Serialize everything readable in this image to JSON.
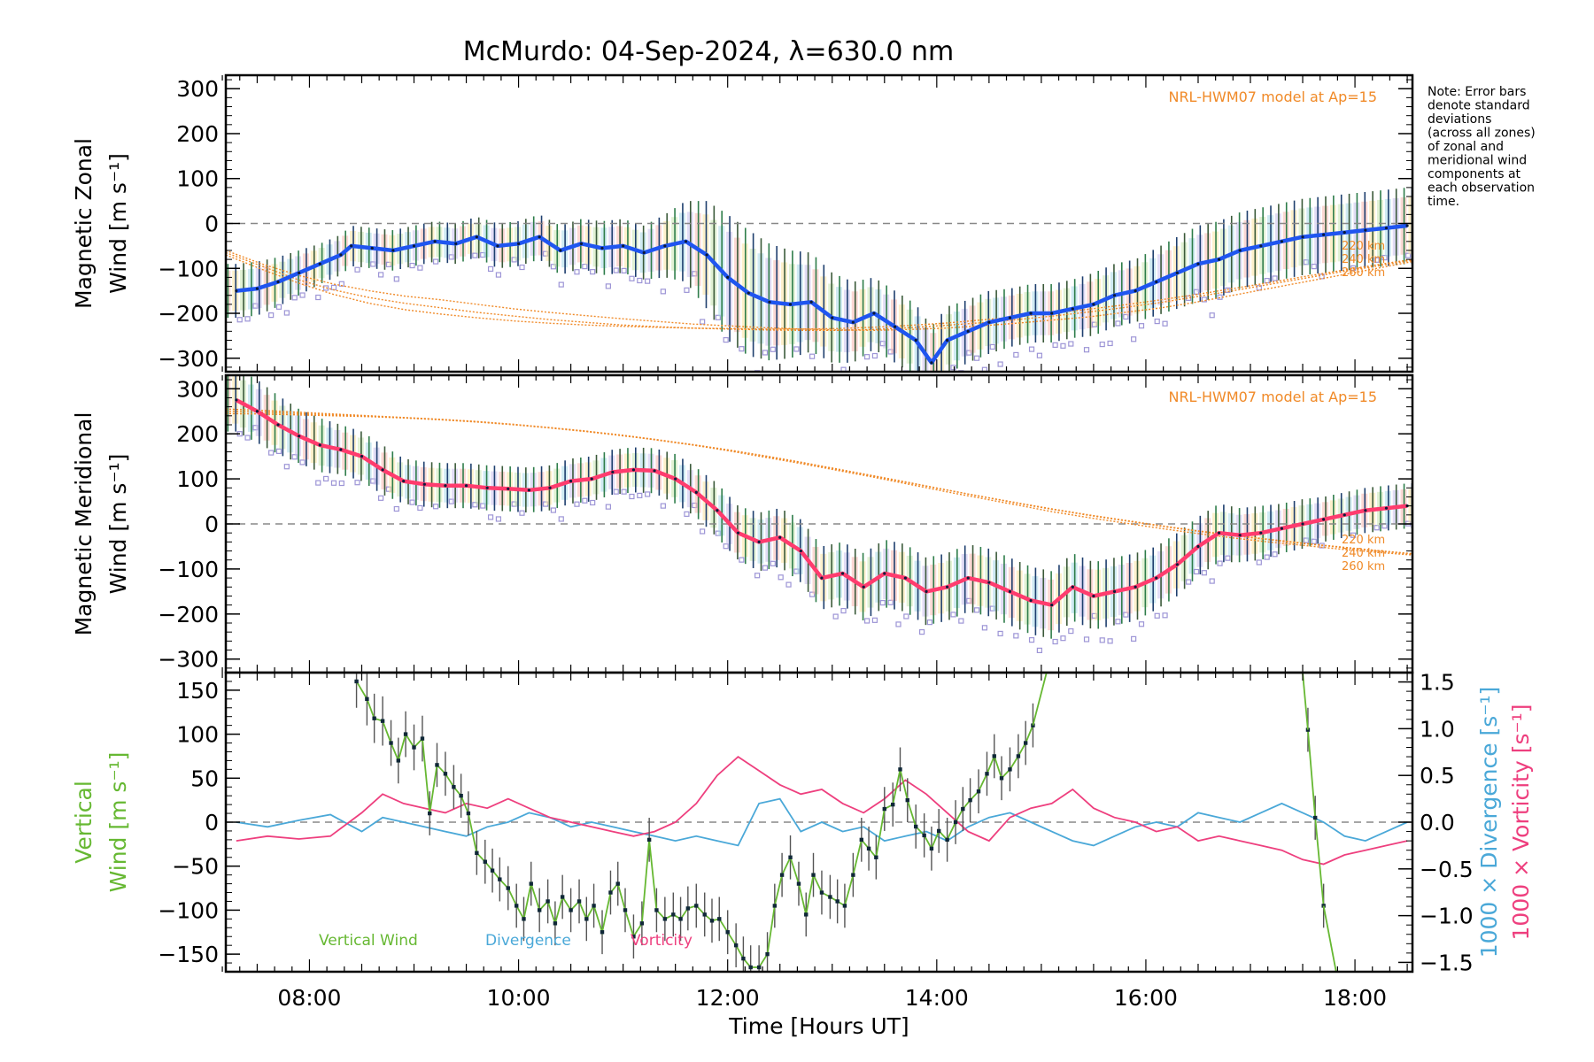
{
  "title": "McMurdo: 04-Sep-2024, λ=630.0 nm",
  "note": "Note: Error bars denote standard deviations (across all zones) of zonal and meridional wind components at each observation time.",
  "note_lines": [
    "Note: Error bars",
    "denote standard",
    "deviations",
    "(across all zones)",
    "of zonal and",
    "meridional wind",
    "components at",
    "each observation",
    "time."
  ],
  "colors": {
    "zonal": "#1f55f0",
    "meridional": "#ff3c6e",
    "vertical": "#66b832",
    "divergence": "#4aa8d8",
    "vorticity": "#ee3f7e",
    "model": "#f08a28",
    "error_bar": "#2a4a5c",
    "zone_points": "#9d95d6"
  },
  "chart_data": [
    {
      "type": "line",
      "id": "zonal",
      "ylabel_line1": "Magnetic Zonal",
      "ylabel_line2": "Wind [m s⁻¹]",
      "ylim": [
        -330,
        330
      ],
      "yticks": [
        300,
        200,
        100,
        0,
        -100,
        -200,
        -300
      ],
      "ytick_labels": [
        "300",
        "200",
        "100",
        "0",
        "−100",
        "−200",
        "−300"
      ],
      "model_label": "NRL-HWM07 model at Ap=15",
      "model_altitudes": [
        "220 km",
        "240 km",
        "260 km"
      ],
      "x": [
        7.3,
        7.5,
        7.7,
        7.9,
        8.1,
        8.3,
        8.4,
        8.6,
        8.8,
        9.0,
        9.2,
        9.4,
        9.6,
        9.8,
        10.0,
        10.2,
        10.4,
        10.6,
        10.8,
        11.0,
        11.2,
        11.4,
        11.6,
        11.8,
        12.0,
        12.2,
        12.4,
        12.6,
        12.8,
        13.0,
        13.2,
        13.4,
        13.6,
        13.8,
        13.95,
        14.1,
        14.3,
        14.5,
        14.7,
        14.9,
        15.1,
        15.3,
        15.5,
        15.7,
        15.9,
        16.1,
        16.3,
        16.5,
        16.7,
        16.9,
        17.1,
        17.3,
        17.5,
        17.7,
        17.9,
        18.1,
        18.3,
        18.5
      ],
      "values": [
        -150,
        -145,
        -130,
        -110,
        -90,
        -70,
        -50,
        -55,
        -60,
        -50,
        -40,
        -45,
        -30,
        -50,
        -45,
        -30,
        -60,
        -45,
        -55,
        -50,
        -65,
        -50,
        -40,
        -70,
        -120,
        -155,
        -175,
        -180,
        -175,
        -210,
        -220,
        -200,
        -230,
        -260,
        -310,
        -260,
        -240,
        -220,
        -210,
        -200,
        -200,
        -190,
        -180,
        -160,
        -150,
        -130,
        -110,
        -90,
        -80,
        -60,
        -50,
        -40,
        -30,
        -25,
        -20,
        -15,
        -10,
        -5
      ],
      "error": [
        60,
        60,
        55,
        50,
        45,
        45,
        45,
        45,
        45,
        45,
        45,
        45,
        45,
        50,
        50,
        50,
        55,
        55,
        60,
        60,
        60,
        70,
        90,
        120,
        140,
        140,
        130,
        120,
        110,
        100,
        90,
        80,
        80,
        80,
        80,
        75,
        70,
        70,
        65,
        65,
        65,
        65,
        70,
        70,
        70,
        75,
        80,
        85,
        85,
        85,
        85,
        85,
        85,
        85,
        85,
        85,
        85,
        85
      ],
      "model_220": [
        -60,
        -90,
        -115,
        -135,
        -150,
        -162,
        -170,
        -180,
        -190,
        -198,
        -205,
        -212,
        -218,
        -224,
        -228,
        -232,
        -235,
        -237,
        -238,
        -236,
        -233,
        -228,
        -222,
        -215,
        -208,
        -198,
        -188,
        -175,
        -160,
        -145,
        -130,
        -115,
        -100,
        -85
      ],
      "model_240": [
        -65,
        -95,
        -125,
        -148,
        -165,
        -178,
        -188,
        -198,
        -206,
        -214,
        -220,
        -226,
        -230,
        -233,
        -235,
        -237,
        -238,
        -238,
        -236,
        -232,
        -227,
        -221,
        -214,
        -206,
        -197,
        -187,
        -176,
        -163,
        -150,
        -136,
        -122,
        -108,
        -95,
        -82
      ],
      "model_260": [
        -70,
        -102,
        -132,
        -158,
        -178,
        -192,
        -202,
        -210,
        -217,
        -222,
        -226,
        -229,
        -231,
        -233,
        -234,
        -235,
        -235,
        -234,
        -231,
        -227,
        -222,
        -215,
        -208,
        -200,
        -191,
        -181,
        -170,
        -158,
        -145,
        -132,
        -118,
        -105,
        -92,
        -80
      ]
    },
    {
      "type": "line",
      "id": "meridional",
      "ylabel_line1": "Magnetic Meridional",
      "ylabel_line2": "Wind [m s⁻¹]",
      "ylim": [
        -330,
        330
      ],
      "yticks": [
        300,
        200,
        100,
        0,
        -100,
        -200,
        -300
      ],
      "ytick_labels": [
        "300",
        "200",
        "100",
        "0",
        "−100",
        "−200",
        "−300"
      ],
      "model_label": "NRL-HWM07 model at Ap=15",
      "model_altitudes": [
        "220 km",
        "240 km",
        "260 km"
      ],
      "x": [
        7.3,
        7.5,
        7.7,
        7.9,
        8.1,
        8.3,
        8.5,
        8.7,
        8.9,
        9.1,
        9.3,
        9.5,
        9.7,
        9.9,
        10.1,
        10.3,
        10.5,
        10.7,
        10.9,
        11.1,
        11.3,
        11.5,
        11.7,
        11.9,
        12.1,
        12.3,
        12.5,
        12.7,
        12.9,
        13.1,
        13.3,
        13.5,
        13.7,
        13.9,
        14.1,
        14.3,
        14.5,
        14.7,
        14.9,
        15.1,
        15.3,
        15.5,
        15.7,
        15.9,
        16.1,
        16.3,
        16.5,
        16.7,
        16.9,
        17.1,
        17.3,
        17.5,
        17.7,
        17.9,
        18.1,
        18.3,
        18.5
      ],
      "values": [
        275,
        250,
        220,
        195,
        175,
        165,
        150,
        120,
        95,
        88,
        85,
        85,
        80,
        78,
        75,
        80,
        95,
        100,
        115,
        120,
        118,
        100,
        70,
        30,
        -20,
        -40,
        -30,
        -60,
        -120,
        -110,
        -140,
        -110,
        -120,
        -150,
        -140,
        -120,
        -130,
        -150,
        -170,
        -180,
        -140,
        -160,
        -150,
        -140,
        -120,
        -90,
        -50,
        -20,
        -25,
        -20,
        -10,
        0,
        10,
        20,
        30,
        35,
        40
      ],
      "error": [
        70,
        70,
        65,
        60,
        60,
        55,
        55,
        55,
        50,
        50,
        50,
        50,
        50,
        50,
        50,
        50,
        50,
        50,
        50,
        50,
        50,
        55,
        55,
        60,
        60,
        65,
        65,
        70,
        70,
        70,
        75,
        75,
        75,
        75,
        75,
        75,
        75,
        75,
        75,
        75,
        75,
        75,
        75,
        75,
        70,
        70,
        65,
        65,
        60,
        60,
        55,
        55,
        50,
        50,
        50,
        50,
        50
      ],
      "model_220": [
        255,
        252,
        248,
        244,
        240,
        236,
        232,
        227,
        221,
        214,
        206,
        197,
        186,
        175,
        162,
        148,
        134,
        119,
        104,
        88,
        72,
        57,
        42,
        27,
        14,
        2,
        -10,
        -21,
        -31,
        -40,
        -48,
        -56,
        -63,
        -69
      ],
      "model_240": [
        250,
        248,
        245,
        242,
        239,
        236,
        232,
        227,
        221,
        214,
        206,
        197,
        187,
        176,
        164,
        151,
        137,
        122,
        107,
        92,
        76,
        61,
        46,
        32,
        19,
        7,
        -5,
        -16,
        -26,
        -35,
        -44,
        -52,
        -60,
        -67
      ],
      "model_260": [
        245,
        244,
        242,
        240,
        238,
        235,
        231,
        226,
        220,
        213,
        205,
        196,
        186,
        175,
        163,
        150,
        136,
        121,
        106,
        91,
        76,
        61,
        47,
        33,
        20,
        8,
        -4,
        -15,
        -25,
        -34,
        -43,
        -51,
        -59,
        -66
      ]
    },
    {
      "type": "line",
      "id": "vertical",
      "ylabel_line1": "Vertical",
      "ylabel_line2": "Wind [m s⁻¹]",
      "ylim": [
        -170,
        170
      ],
      "yticks": [
        150,
        100,
        50,
        0,
        -50,
        -100,
        -150
      ],
      "ytick_labels": [
        "150",
        "100",
        "50",
        "0",
        "−50",
        "−100",
        "−150"
      ],
      "right_ylim": [
        -1.6,
        1.6
      ],
      "right_yticks": [
        1.5,
        1.0,
        0.5,
        0.0,
        -0.5,
        -1.0,
        -1.5
      ],
      "right_ytick_labels": [
        "1.5",
        "1.0",
        "0.5",
        "0.0",
        "−0.5",
        "−1.0",
        "−1.5"
      ],
      "right_label_divergence": "1000 × Divergence [s⁻¹]",
      "right_label_vorticity": "1000 × Vorticity [s⁻¹]",
      "legend": [
        "Vertical Wind",
        "Divergence",
        "Vorticity"
      ],
      "vertical_segments": [
        {
          "x": [
            8.45,
            8.55,
            8.62,
            8.7,
            8.78,
            8.85,
            8.92,
            9.0,
            9.08,
            9.15,
            9.22,
            9.3,
            9.38,
            9.45,
            9.52,
            9.6,
            9.68,
            9.75,
            9.82,
            9.9,
            9.98,
            10.05,
            10.12,
            10.2,
            10.28,
            10.35,
            10.42,
            10.5,
            10.58,
            10.65,
            10.72,
            10.8,
            10.88,
            10.95,
            11.02,
            11.1,
            11.18,
            11.25,
            11.32,
            11.4,
            11.48,
            11.55,
            11.62,
            11.7,
            11.78,
            11.85,
            11.92,
            12.0,
            12.08,
            12.15,
            12.22,
            12.3,
            12.38,
            12.45,
            12.52,
            12.6,
            12.68,
            12.75,
            12.82,
            12.9,
            12.98,
            13.05,
            13.12,
            13.2,
            13.28,
            13.35,
            13.42,
            13.5,
            13.58,
            13.65,
            13.72,
            13.8,
            13.88,
            13.95,
            14.02,
            14.1,
            14.18,
            14.25,
            14.32,
            14.4,
            14.48,
            14.55,
            14.62,
            14.7,
            14.78,
            14.85,
            14.92
          ],
          "values": [
            160,
            140,
            118,
            115,
            90,
            70,
            100,
            85,
            95,
            10,
            65,
            55,
            40,
            30,
            10,
            -35,
            -45,
            -55,
            -65,
            -75,
            -95,
            -110,
            -70,
            -100,
            -90,
            -115,
            -85,
            -100,
            -90,
            -110,
            -95,
            -125,
            -80,
            -70,
            -100,
            -130,
            -115,
            -20,
            -100,
            -110,
            -105,
            -110,
            -98,
            -95,
            -105,
            -112,
            -110,
            -125,
            -140,
            -155,
            -165,
            -165,
            -150,
            -95,
            -60,
            -40,
            -70,
            -105,
            -60,
            -80,
            -85,
            -90,
            -95,
            -60,
            -20,
            -30,
            -40,
            15,
            20,
            60,
            25,
            -5,
            -15,
            -30,
            -10,
            -20,
            0,
            15,
            25,
            35,
            55,
            75,
            50,
            60,
            75,
            90,
            110
          ],
          "error": [
            30,
            30,
            28,
            28,
            26,
            26,
            26,
            26,
            26,
            25,
            25,
            25,
            25,
            25,
            25,
            25,
            25,
            25,
            25,
            25,
            25,
            25,
            25,
            25,
            25,
            25,
            25,
            25,
            25,
            25,
            25,
            25,
            25,
            25,
            25,
            25,
            25,
            25,
            25,
            25,
            25,
            25,
            25,
            25,
            25,
            25,
            25,
            25,
            25,
            25,
            25,
            25,
            25,
            25,
            25,
            25,
            25,
            25,
            25,
            25,
            25,
            25,
            25,
            25,
            25,
            25,
            25,
            25,
            25,
            25,
            25,
            25,
            25,
            25,
            25,
            25,
            25,
            25,
            25,
            25,
            25,
            25,
            25,
            25,
            25,
            25,
            25
          ]
        },
        {
          "x": [
            17.55,
            17.62,
            17.7
          ],
          "values": [
            105,
            5,
            -95
          ],
          "error": [
            25,
            25,
            25
          ]
        }
      ],
      "vertical_clip_lines": [
        {
          "x": [
            14.92,
            15.05
          ],
          "values": [
            110,
            170
          ]
        },
        {
          "x": [
            17.5,
            17.55
          ],
          "values": [
            170,
            105
          ]
        },
        {
          "x": [
            17.7,
            17.82
          ],
          "values": [
            -95,
            -170
          ]
        }
      ],
      "divergence": {
        "x": [
          7.3,
          7.6,
          7.9,
          8.2,
          8.5,
          8.7,
          8.9,
          9.1,
          9.3,
          9.5,
          9.7,
          9.9,
          10.1,
          10.3,
          10.5,
          10.7,
          10.9,
          11.1,
          11.3,
          11.5,
          11.7,
          11.9,
          12.1,
          12.3,
          12.5,
          12.7,
          12.9,
          13.1,
          13.3,
          13.5,
          13.7,
          13.9,
          14.1,
          14.3,
          14.5,
          14.7,
          14.9,
          15.1,
          15.3,
          15.5,
          15.7,
          15.9,
          16.1,
          16.3,
          16.5,
          16.7,
          16.9,
          17.1,
          17.3,
          17.5,
          17.7,
          17.9,
          18.1,
          18.3,
          18.5
        ],
        "values": [
          0.0,
          -0.05,
          0.02,
          0.08,
          -0.1,
          0.05,
          0.0,
          -0.05,
          -0.1,
          -0.15,
          -0.05,
          0.0,
          0.1,
          0.05,
          -0.05,
          0.0,
          -0.05,
          -0.1,
          -0.15,
          -0.2,
          -0.15,
          -0.2,
          -0.25,
          0.2,
          0.25,
          -0.1,
          0.0,
          -0.1,
          -0.05,
          -0.2,
          -0.15,
          -0.1,
          -0.2,
          -0.05,
          0.05,
          0.1,
          0.0,
          -0.1,
          -0.2,
          -0.25,
          -0.15,
          -0.05,
          0.0,
          -0.05,
          0.1,
          0.05,
          0.0,
          0.1,
          0.2,
          0.1,
          0.0,
          -0.15,
          -0.2,
          -0.1,
          0.0
        ]
      },
      "vorticity": {
        "x": [
          7.3,
          7.6,
          7.9,
          8.2,
          8.5,
          8.7,
          8.9,
          9.1,
          9.3,
          9.5,
          9.7,
          9.9,
          10.1,
          10.3,
          10.5,
          10.7,
          10.9,
          11.1,
          11.3,
          11.5,
          11.7,
          11.9,
          12.1,
          12.3,
          12.5,
          12.7,
          12.9,
          13.1,
          13.3,
          13.5,
          13.7,
          13.9,
          14.1,
          14.3,
          14.5,
          14.7,
          14.9,
          15.1,
          15.3,
          15.5,
          15.7,
          15.9,
          16.1,
          16.3,
          16.5,
          16.7,
          16.9,
          17.1,
          17.3,
          17.5,
          17.7,
          17.9,
          18.1,
          18.3,
          18.5
        ],
        "values": [
          -0.2,
          -0.15,
          -0.18,
          -0.15,
          0.1,
          0.3,
          0.2,
          0.15,
          0.1,
          0.2,
          0.15,
          0.25,
          0.15,
          0.05,
          0.0,
          -0.05,
          -0.1,
          -0.15,
          -0.1,
          0.0,
          0.2,
          0.5,
          0.7,
          0.55,
          0.4,
          0.3,
          0.35,
          0.2,
          0.1,
          0.25,
          0.45,
          0.3,
          0.1,
          -0.1,
          -0.2,
          0.05,
          0.15,
          0.2,
          0.35,
          0.15,
          0.05,
          0.0,
          -0.1,
          -0.05,
          -0.2,
          -0.15,
          -0.2,
          -0.25,
          -0.3,
          -0.4,
          -0.45,
          -0.35,
          -0.3,
          -0.25,
          -0.2
        ]
      }
    }
  ],
  "xaxis": {
    "xlim": [
      7.2,
      18.55
    ],
    "xticks": [
      8,
      10,
      12,
      14,
      16,
      18
    ],
    "xtick_labels": [
      "08:00",
      "10:00",
      "12:00",
      "14:00",
      "16:00",
      "18:00"
    ],
    "xlabel": "Time [Hours UT]"
  }
}
